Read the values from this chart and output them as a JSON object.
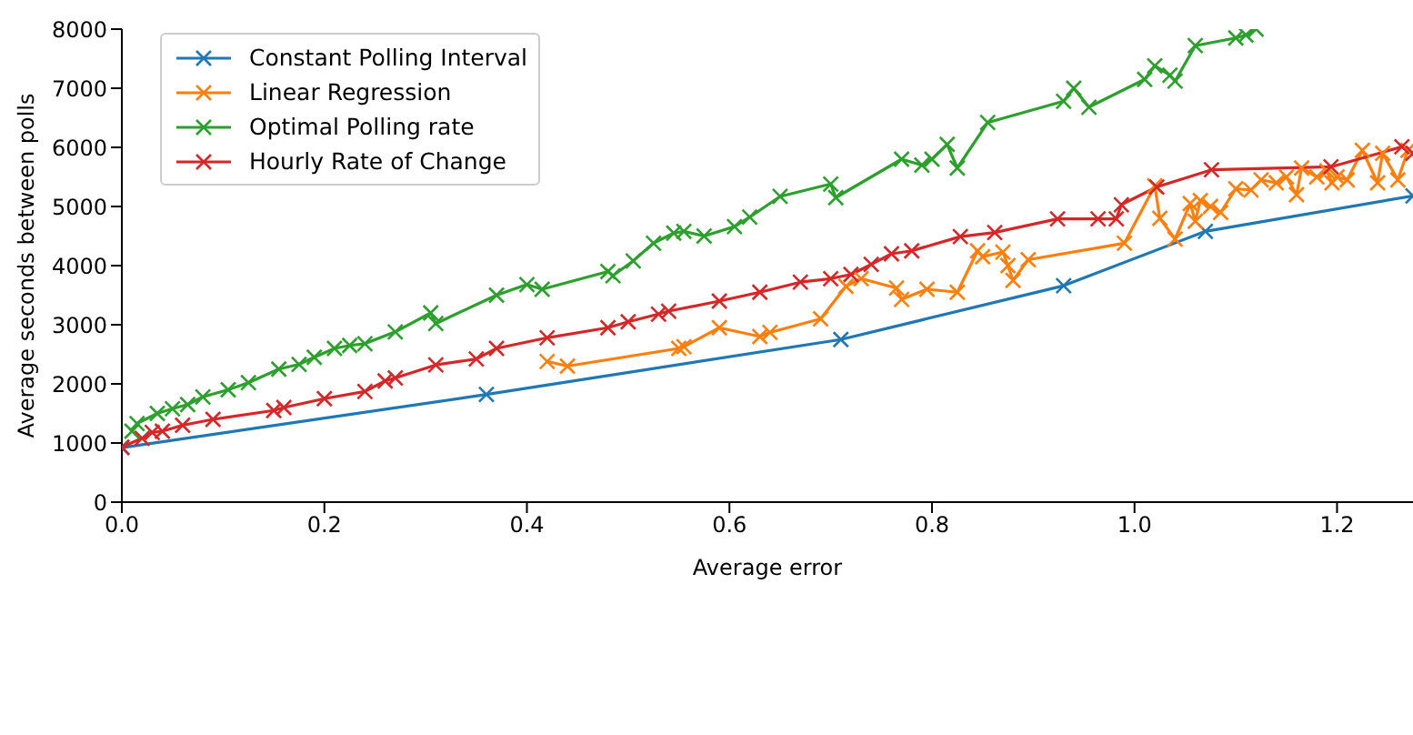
{
  "chart_data": {
    "type": "line",
    "xlabel": "Average error",
    "ylabel": "Average seconds between polls",
    "xlim": [
      0,
      1.275
    ],
    "ylim": [
      0,
      8000
    ],
    "xticks": [
      {
        "value": 0,
        "label": "0.0"
      },
      0.2,
      0.4,
      0.6,
      0.8,
      {
        "value": 1,
        "label": "1.0"
      },
      1.2
    ],
    "yticks": [
      0,
      1000,
      2000,
      3000,
      4000,
      5000,
      6000,
      7000,
      8000
    ],
    "grid": false,
    "legend": "top left",
    "marker": "cross",
    "line_style": "solid",
    "series": [
      {
        "name": "Constant Polling Interval",
        "color": "#1f77b4",
        "x": [
          0.0,
          0.36,
          0.71,
          0.93,
          1.07,
          1.275
        ],
        "values": [
          920,
          1820,
          2750,
          3660,
          4580,
          5180
        ]
      },
      {
        "name": "Linear Regression",
        "color": "#ff7f0e",
        "x": [
          0.42,
          0.44,
          0.55,
          0.555,
          0.59,
          0.63,
          0.64,
          0.69,
          0.715,
          0.73,
          0.765,
          0.77,
          0.795,
          0.825,
          0.845,
          0.85,
          0.87,
          0.875,
          0.88,
          0.895,
          0.99,
          1.02,
          1.025,
          1.04,
          1.055,
          1.06,
          1.065,
          1.075,
          1.085,
          1.1,
          1.115,
          1.125,
          1.14,
          1.15,
          1.16,
          1.165,
          1.18,
          1.19,
          1.195,
          1.2,
          1.21,
          1.225,
          1.24,
          1.245,
          1.26,
          1.27
        ],
        "values": [
          2380,
          2300,
          2600,
          2630,
          2950,
          2800,
          2870,
          3100,
          3650,
          3780,
          3620,
          3430,
          3600,
          3550,
          4250,
          4150,
          4230,
          4000,
          3750,
          4100,
          4380,
          5350,
          4800,
          4450,
          5050,
          4750,
          5100,
          5000,
          4900,
          5300,
          5280,
          5450,
          5400,
          5500,
          5200,
          5650,
          5500,
          5600,
          5400,
          5500,
          5450,
          5950,
          5400,
          5900,
          5450,
          5950
        ]
      },
      {
        "name": "Optimal Polling rate",
        "color": "#2ca02c",
        "x": [
          0.01,
          0.015,
          0.035,
          0.05,
          0.065,
          0.08,
          0.105,
          0.125,
          0.155,
          0.175,
          0.19,
          0.21,
          0.225,
          0.24,
          0.27,
          0.305,
          0.31,
          0.37,
          0.4,
          0.415,
          0.48,
          0.485,
          0.505,
          0.525,
          0.545,
          0.555,
          0.575,
          0.605,
          0.62,
          0.65,
          0.7,
          0.705,
          0.77,
          0.79,
          0.8,
          0.815,
          0.825,
          0.855,
          0.93,
          0.94,
          0.955,
          1.01,
          1.02,
          1.035,
          1.04,
          1.06,
          1.1,
          1.11,
          1.12
        ],
        "values": [
          1200,
          1330,
          1500,
          1580,
          1650,
          1780,
          1900,
          2020,
          2250,
          2330,
          2450,
          2600,
          2650,
          2680,
          2880,
          3200,
          3020,
          3500,
          3680,
          3600,
          3900,
          3830,
          4080,
          4380,
          4550,
          4580,
          4500,
          4660,
          4820,
          5170,
          5380,
          5150,
          5800,
          5700,
          5800,
          6050,
          5650,
          6420,
          6780,
          7000,
          6680,
          7150,
          7380,
          7220,
          7120,
          7720,
          7850,
          7900,
          8000
        ]
      },
      {
        "name": "Hourly Rate of Change",
        "color": "#d62728",
        "x": [
          0.0,
          0.02,
          0.03,
          0.04,
          0.06,
          0.09,
          0.15,
          0.16,
          0.2,
          0.24,
          0.26,
          0.27,
          0.31,
          0.35,
          0.37,
          0.42,
          0.48,
          0.5,
          0.53,
          0.54,
          0.59,
          0.63,
          0.67,
          0.7,
          0.72,
          0.74,
          0.76,
          0.78,
          0.828,
          0.862,
          0.924,
          0.964,
          0.982,
          0.987,
          1.022,
          1.076,
          1.194,
          1.264,
          1.275
        ],
        "values": [
          930,
          1080,
          1180,
          1200,
          1300,
          1400,
          1550,
          1600,
          1750,
          1870,
          2050,
          2100,
          2320,
          2420,
          2600,
          2780,
          2950,
          3050,
          3180,
          3230,
          3400,
          3550,
          3720,
          3780,
          3850,
          4020,
          4200,
          4250,
          4490,
          4560,
          4790,
          4790,
          4790,
          5030,
          5330,
          5620,
          5670,
          6010,
          5900
        ]
      }
    ]
  }
}
